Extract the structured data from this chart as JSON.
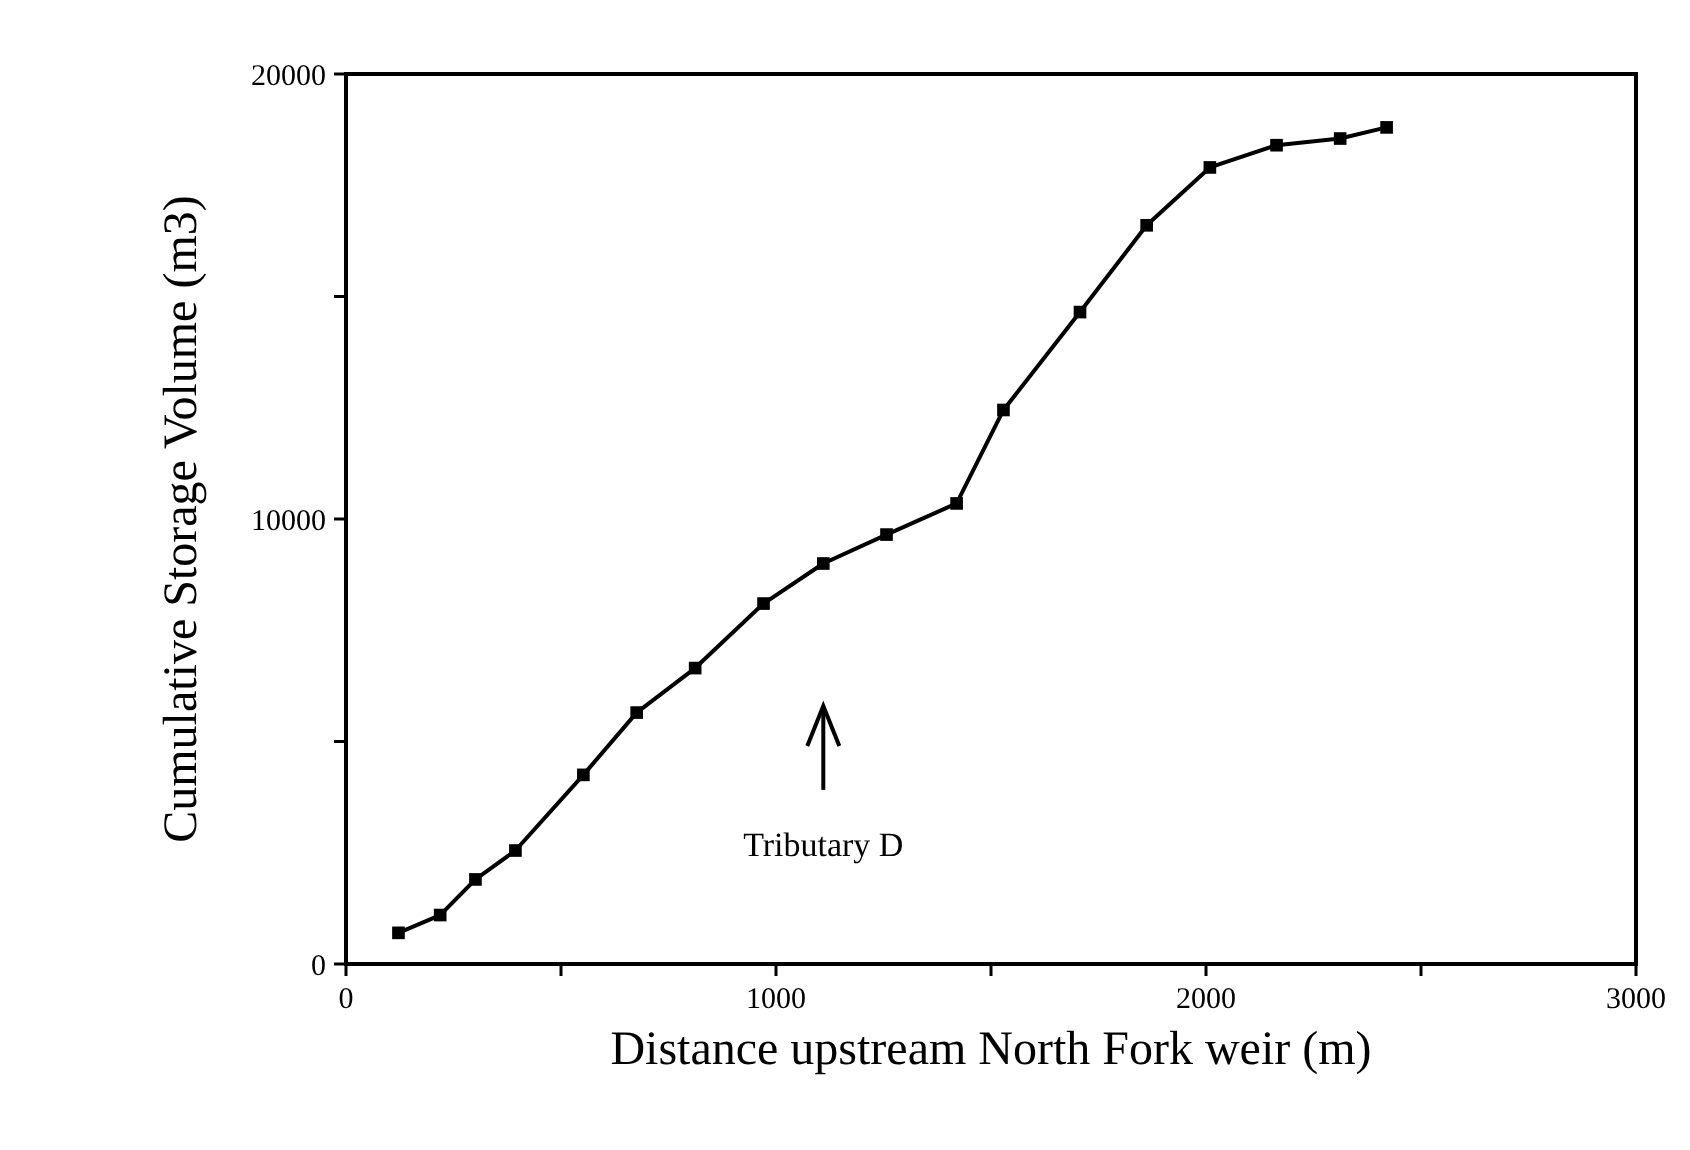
{
  "chart_data": {
    "type": "line",
    "xlabel": "Distance upstream North Fork weir (m)",
    "ylabel": "Cumulative Storage Volume (m3)",
    "x": [
      122,
      219,
      301,
      394,
      552,
      676,
      812,
      971,
      1110,
      1257,
      1420,
      1529,
      1707,
      1862,
      2009,
      2164,
      2312,
      2420
    ],
    "series": [
      {
        "color": "#000000",
        "values": [
          700,
          1100,
          1900,
          2550,
          4250,
          5650,
          6650,
          8100,
          9000,
          9650,
          10350,
          12450,
          14650,
          16600,
          17900,
          18400,
          18550,
          18800
        ]
      }
    ],
    "xlim": [
      0,
      3000
    ],
    "xticks": [
      0,
      {
        "value": 500,
        "label": null
      },
      1000,
      {
        "value": 1500,
        "label": null
      },
      2000,
      {
        "value": 2500,
        "label": null
      },
      3000
    ],
    "ylim": [
      0,
      20000
    ],
    "yticks": [
      0,
      {
        "value": 5000,
        "label": null
      },
      10000,
      {
        "value": 15000,
        "label": null
      },
      20000
    ],
    "grid": false,
    "marker": "square",
    "line_style": "solid",
    "annotations": [
      "Tributary D"
    ]
  }
}
